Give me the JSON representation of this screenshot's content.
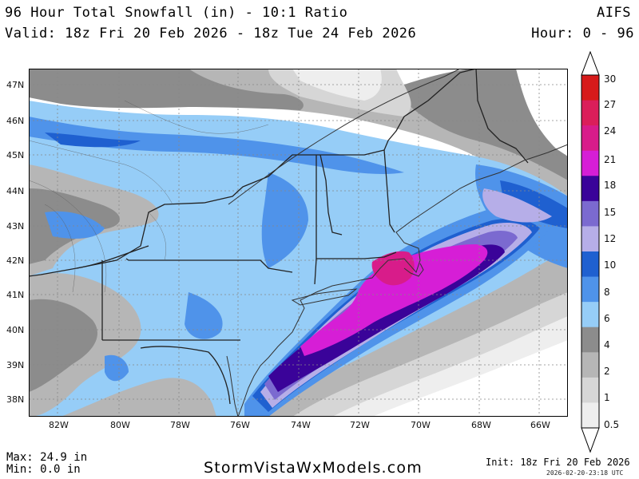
{
  "header": {
    "title": "96 Hour Total Snowfall (in) - 10:1 Ratio",
    "valid": "Valid: 18z Fri 20 Feb 2026 - 18z Tue 24 Feb 2026",
    "model": "AIFS",
    "hours": "Hour: 0 - 96"
  },
  "map": {
    "lat_labels": [
      "47N",
      "46N",
      "45N",
      "44N",
      "43N",
      "42N",
      "41N",
      "40N",
      "39N",
      "38N"
    ],
    "lon_labels": [
      "82W",
      "80W",
      "78W",
      "76W",
      "74W",
      "72W",
      "70W",
      "68W",
      "66W"
    ],
    "max_snowfall_in": 24.9
  },
  "legend": {
    "levels": [
      "30",
      "27",
      "24",
      "21",
      "18",
      "15",
      "12",
      "10",
      "8",
      "6",
      "4",
      "2",
      "1",
      "0.5"
    ],
    "colors": [
      "#d61a1a",
      "#db1e5a",
      "#d81c8a",
      "#d61ed6",
      "#3a0399",
      "#7b6ad0",
      "#b6aee8",
      "#1f60d0",
      "#4f93ea",
      "#96cdf7",
      "#8c8c8c",
      "#b6b6b6",
      "#d6d6d6",
      "#eeeeee"
    ]
  },
  "footer": {
    "max": "Max: 24.9 in",
    "min": "Min: 0.0 in",
    "site": "StormVistaWxModels.com",
    "init": "Init: 18z Fri 20 Feb 2026",
    "stamp": "2026-02-20-23:18 UTC"
  }
}
